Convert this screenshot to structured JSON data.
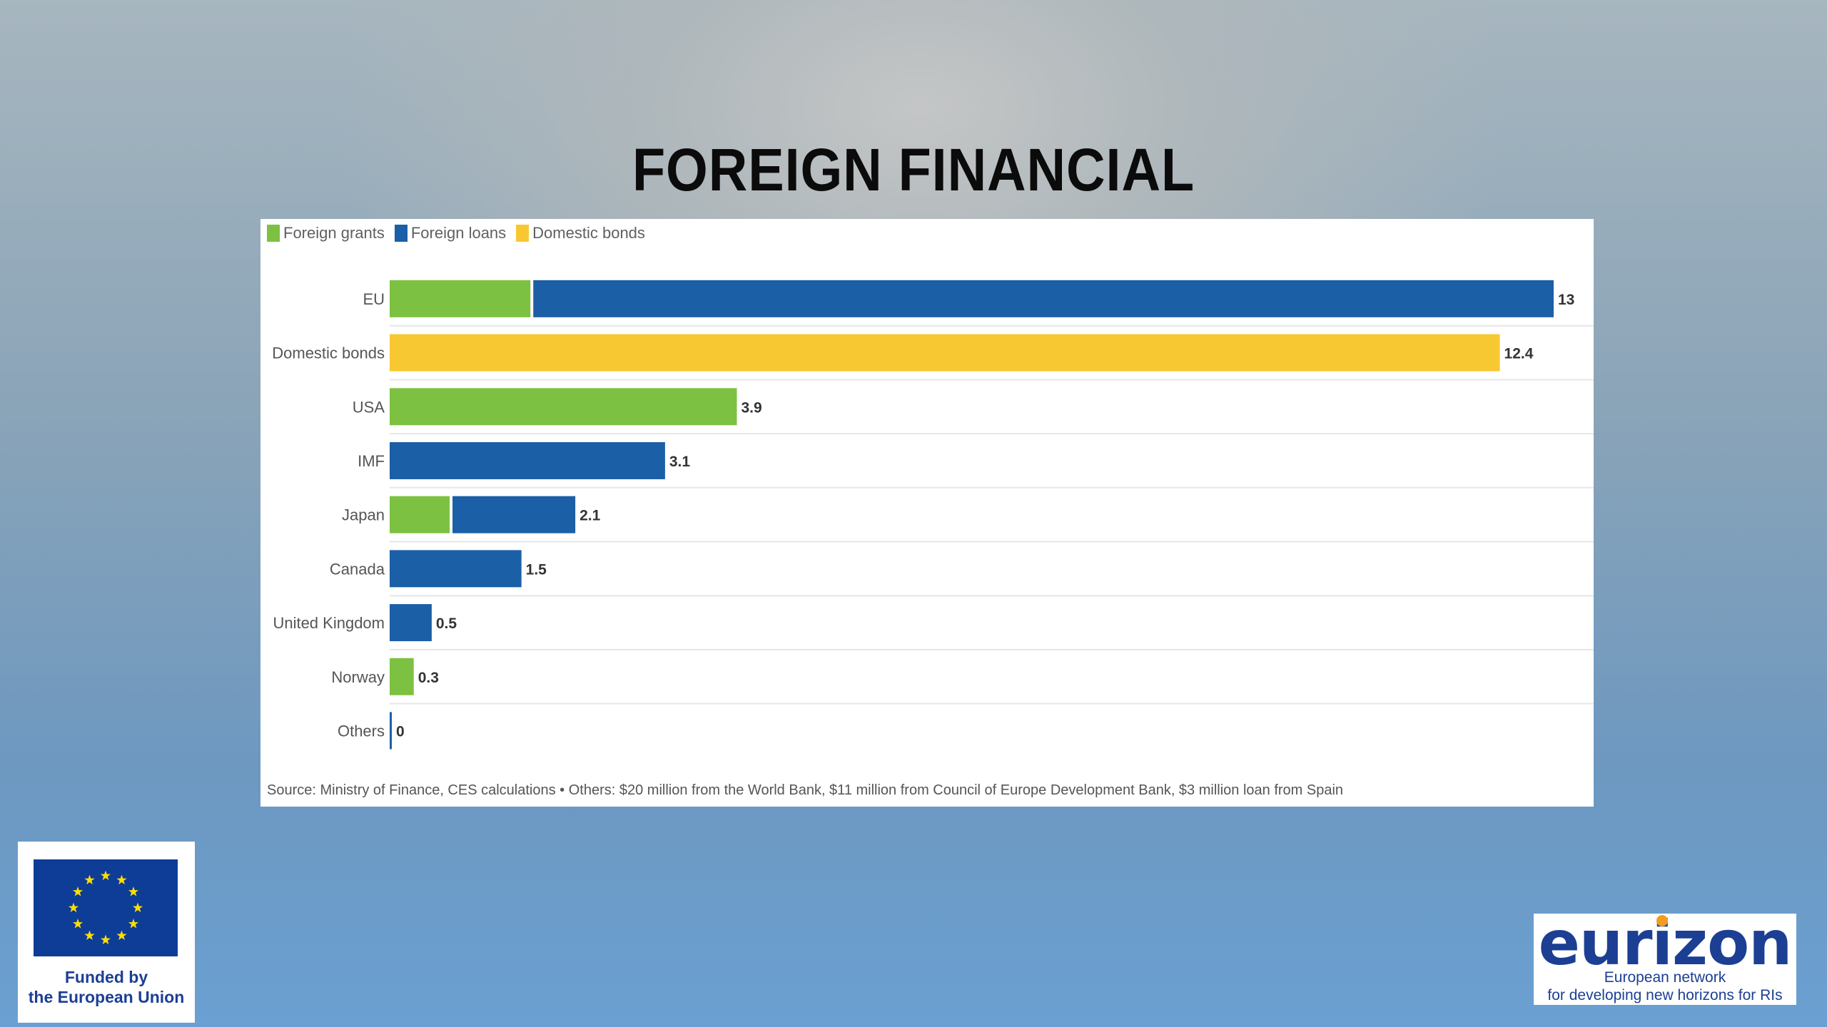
{
  "title": "FOREIGN FINANCIAL",
  "colors": {
    "foreign_grants": "#7dc142",
    "foreign_loans": "#1b5fa6",
    "domestic_bonds": "#f8c832",
    "gridline": "#e6e6e6"
  },
  "chart_data": {
    "type": "bar",
    "orientation": "horizontal",
    "stacked": true,
    "categories": [
      "EU",
      "Domestic bonds",
      "USA",
      "IMF",
      "Japan",
      "Canada",
      "United Kingdom",
      "Norway",
      "Others"
    ],
    "series": [
      {
        "name": "Foreign grants",
        "color": "#7dc142",
        "values": [
          1.6,
          0,
          3.9,
          0,
          0.7,
          0,
          0,
          0.3,
          0
        ]
      },
      {
        "name": "Foreign loans",
        "color": "#1b5fa6",
        "values": [
          11.4,
          0,
          0,
          3.1,
          1.4,
          1.5,
          0.5,
          0,
          0
        ]
      },
      {
        "name": "Domestic bonds",
        "color": "#f8c832",
        "values": [
          0,
          12.4,
          0,
          0,
          0,
          0,
          0,
          0,
          0
        ]
      }
    ],
    "totals": [
      13,
      12.4,
      3.9,
      3.1,
      2.1,
      1.5,
      0.5,
      0.3,
      0
    ],
    "total_labels": [
      "13",
      "12.4",
      "3.9",
      "3.1",
      "2.1",
      "1.5",
      "0.5",
      "0.3",
      "0"
    ],
    "xlim": [
      0,
      13
    ],
    "legend_position": "top-left",
    "source": "Source: Ministry of Finance, CES calculations • Others: $20 million from the World Bank, $11 million from Council of Europe Development Bank, $3 million loan from Spain"
  },
  "logos": {
    "eu_line1": "Funded by",
    "eu_line2": "the European Union",
    "eurizon_word": "eurizon",
    "eurizon_line1": "European network",
    "eurizon_line2": "for developing new horizons for RIs"
  }
}
